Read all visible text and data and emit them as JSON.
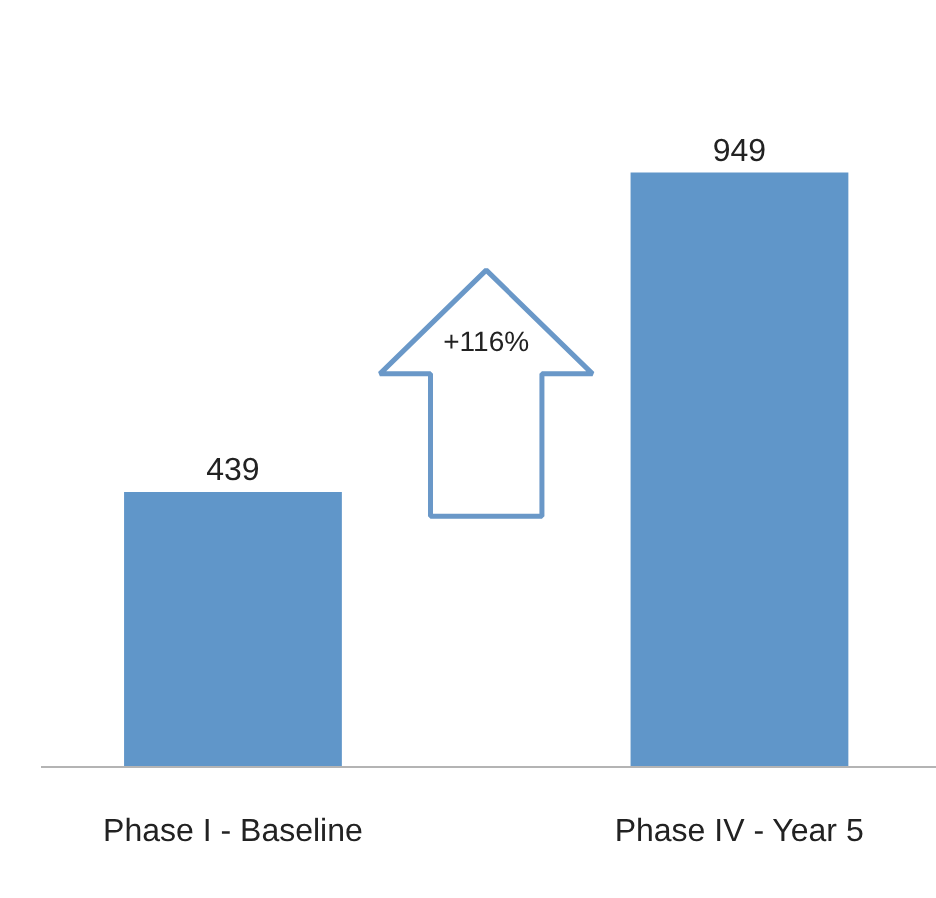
{
  "chart_data": {
    "type": "bar",
    "categories": [
      "Phase I - Baseline",
      "Phase IV - Year 5"
    ],
    "values": [
      439,
      949
    ],
    "color": "#6096c9",
    "data_labels": true,
    "tick_labels": "x",
    "annotations": [
      "+116%"
    ]
  }
}
